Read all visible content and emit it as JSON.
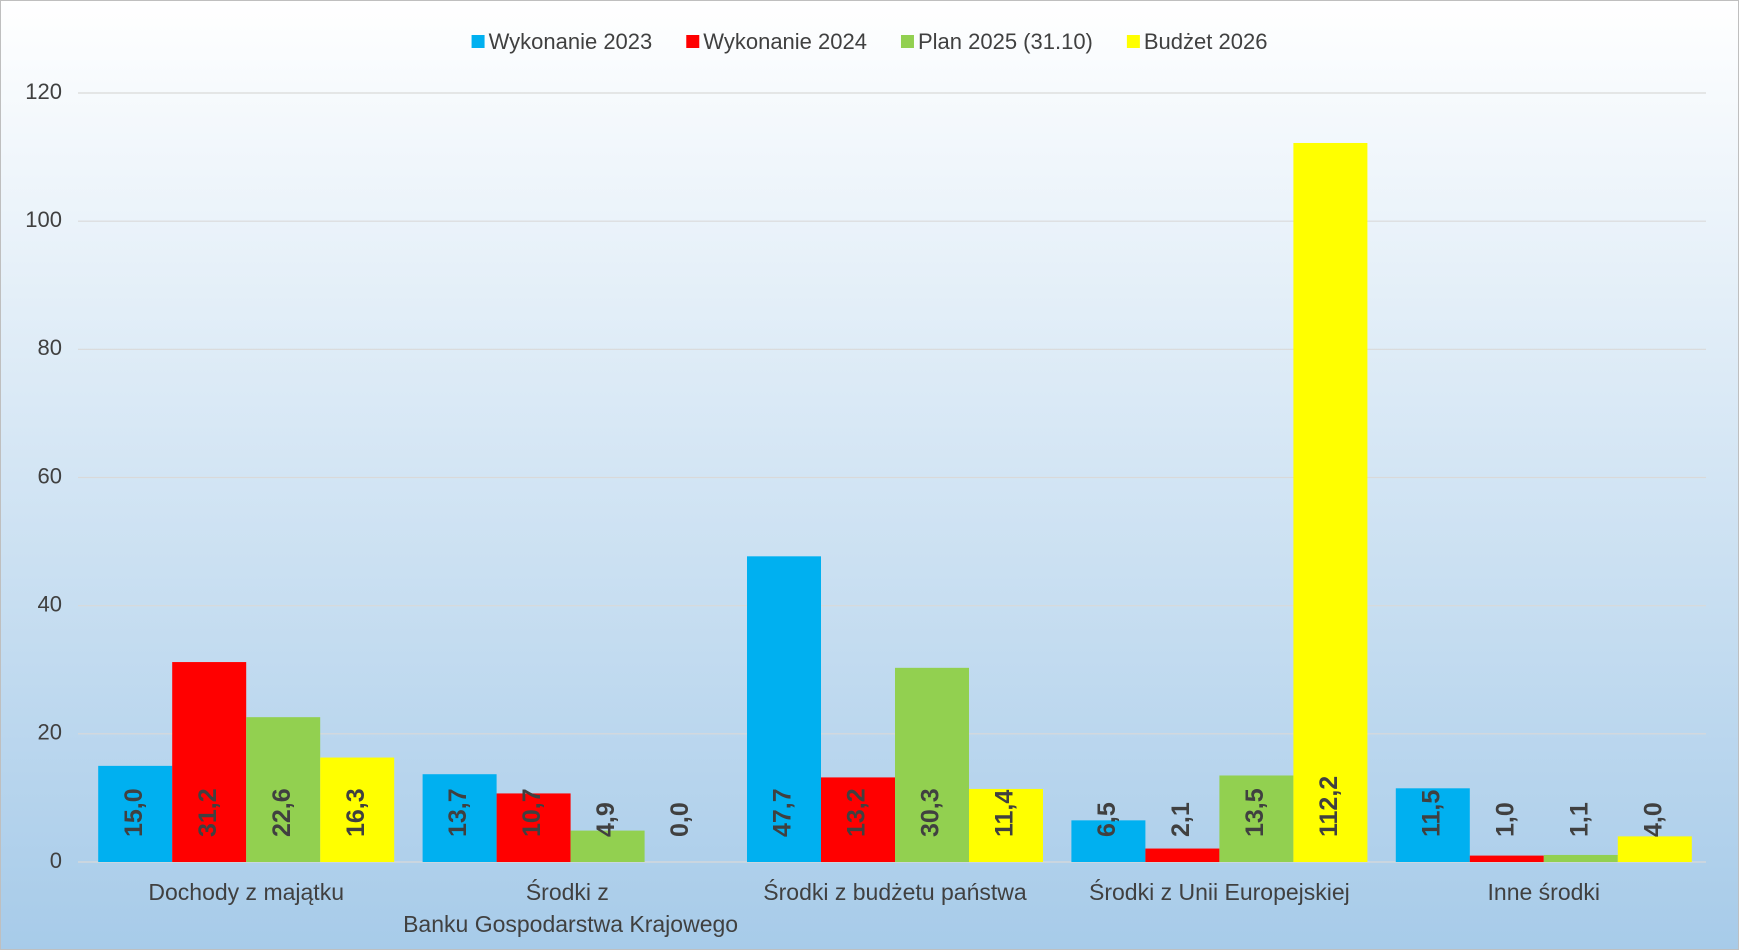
{
  "chart_data": {
    "type": "bar",
    "categories": [
      "Dochody z majątku",
      "Środki z Banku Gospodarstwa Krajowego",
      "Środki z budżetu państwa",
      "Środki z Unii Europejskiej",
      "Inne środki"
    ],
    "series": [
      {
        "name": "Wykonanie 2023",
        "color": "#00b0f0",
        "values": [
          15.0,
          13.7,
          47.7,
          6.5,
          11.5
        ],
        "value_labels": [
          "15,0",
          "13,7",
          "47,7",
          "6,5",
          "11,5"
        ]
      },
      {
        "name": "Wykonanie 2024",
        "color": "#ff0000",
        "values": [
          31.2,
          10.7,
          13.2,
          2.1,
          1.0
        ],
        "value_labels": [
          "31,2",
          "10,7",
          "13,2",
          "2,1",
          "1,0"
        ]
      },
      {
        "name": "Plan 2025 (31.10)",
        "color": "#92d050",
        "values": [
          22.6,
          4.9,
          30.3,
          13.5,
          1.1
        ],
        "value_labels": [
          "22,6",
          "4,9",
          "30,3",
          "13,5",
          "1,1"
        ]
      },
      {
        "name": "Budżet 2026",
        "color": "#ffff00",
        "values": [
          16.3,
          0.0,
          11.4,
          112.2,
          4.0
        ],
        "value_labels": [
          "16,3",
          "0,0",
          "11,4",
          "112,2",
          "4,0"
        ]
      }
    ],
    "ylim": [
      0,
      120
    ],
    "yticks": [
      0,
      20,
      40,
      60,
      80,
      100,
      120
    ],
    "grid": true,
    "legend": "top"
  }
}
